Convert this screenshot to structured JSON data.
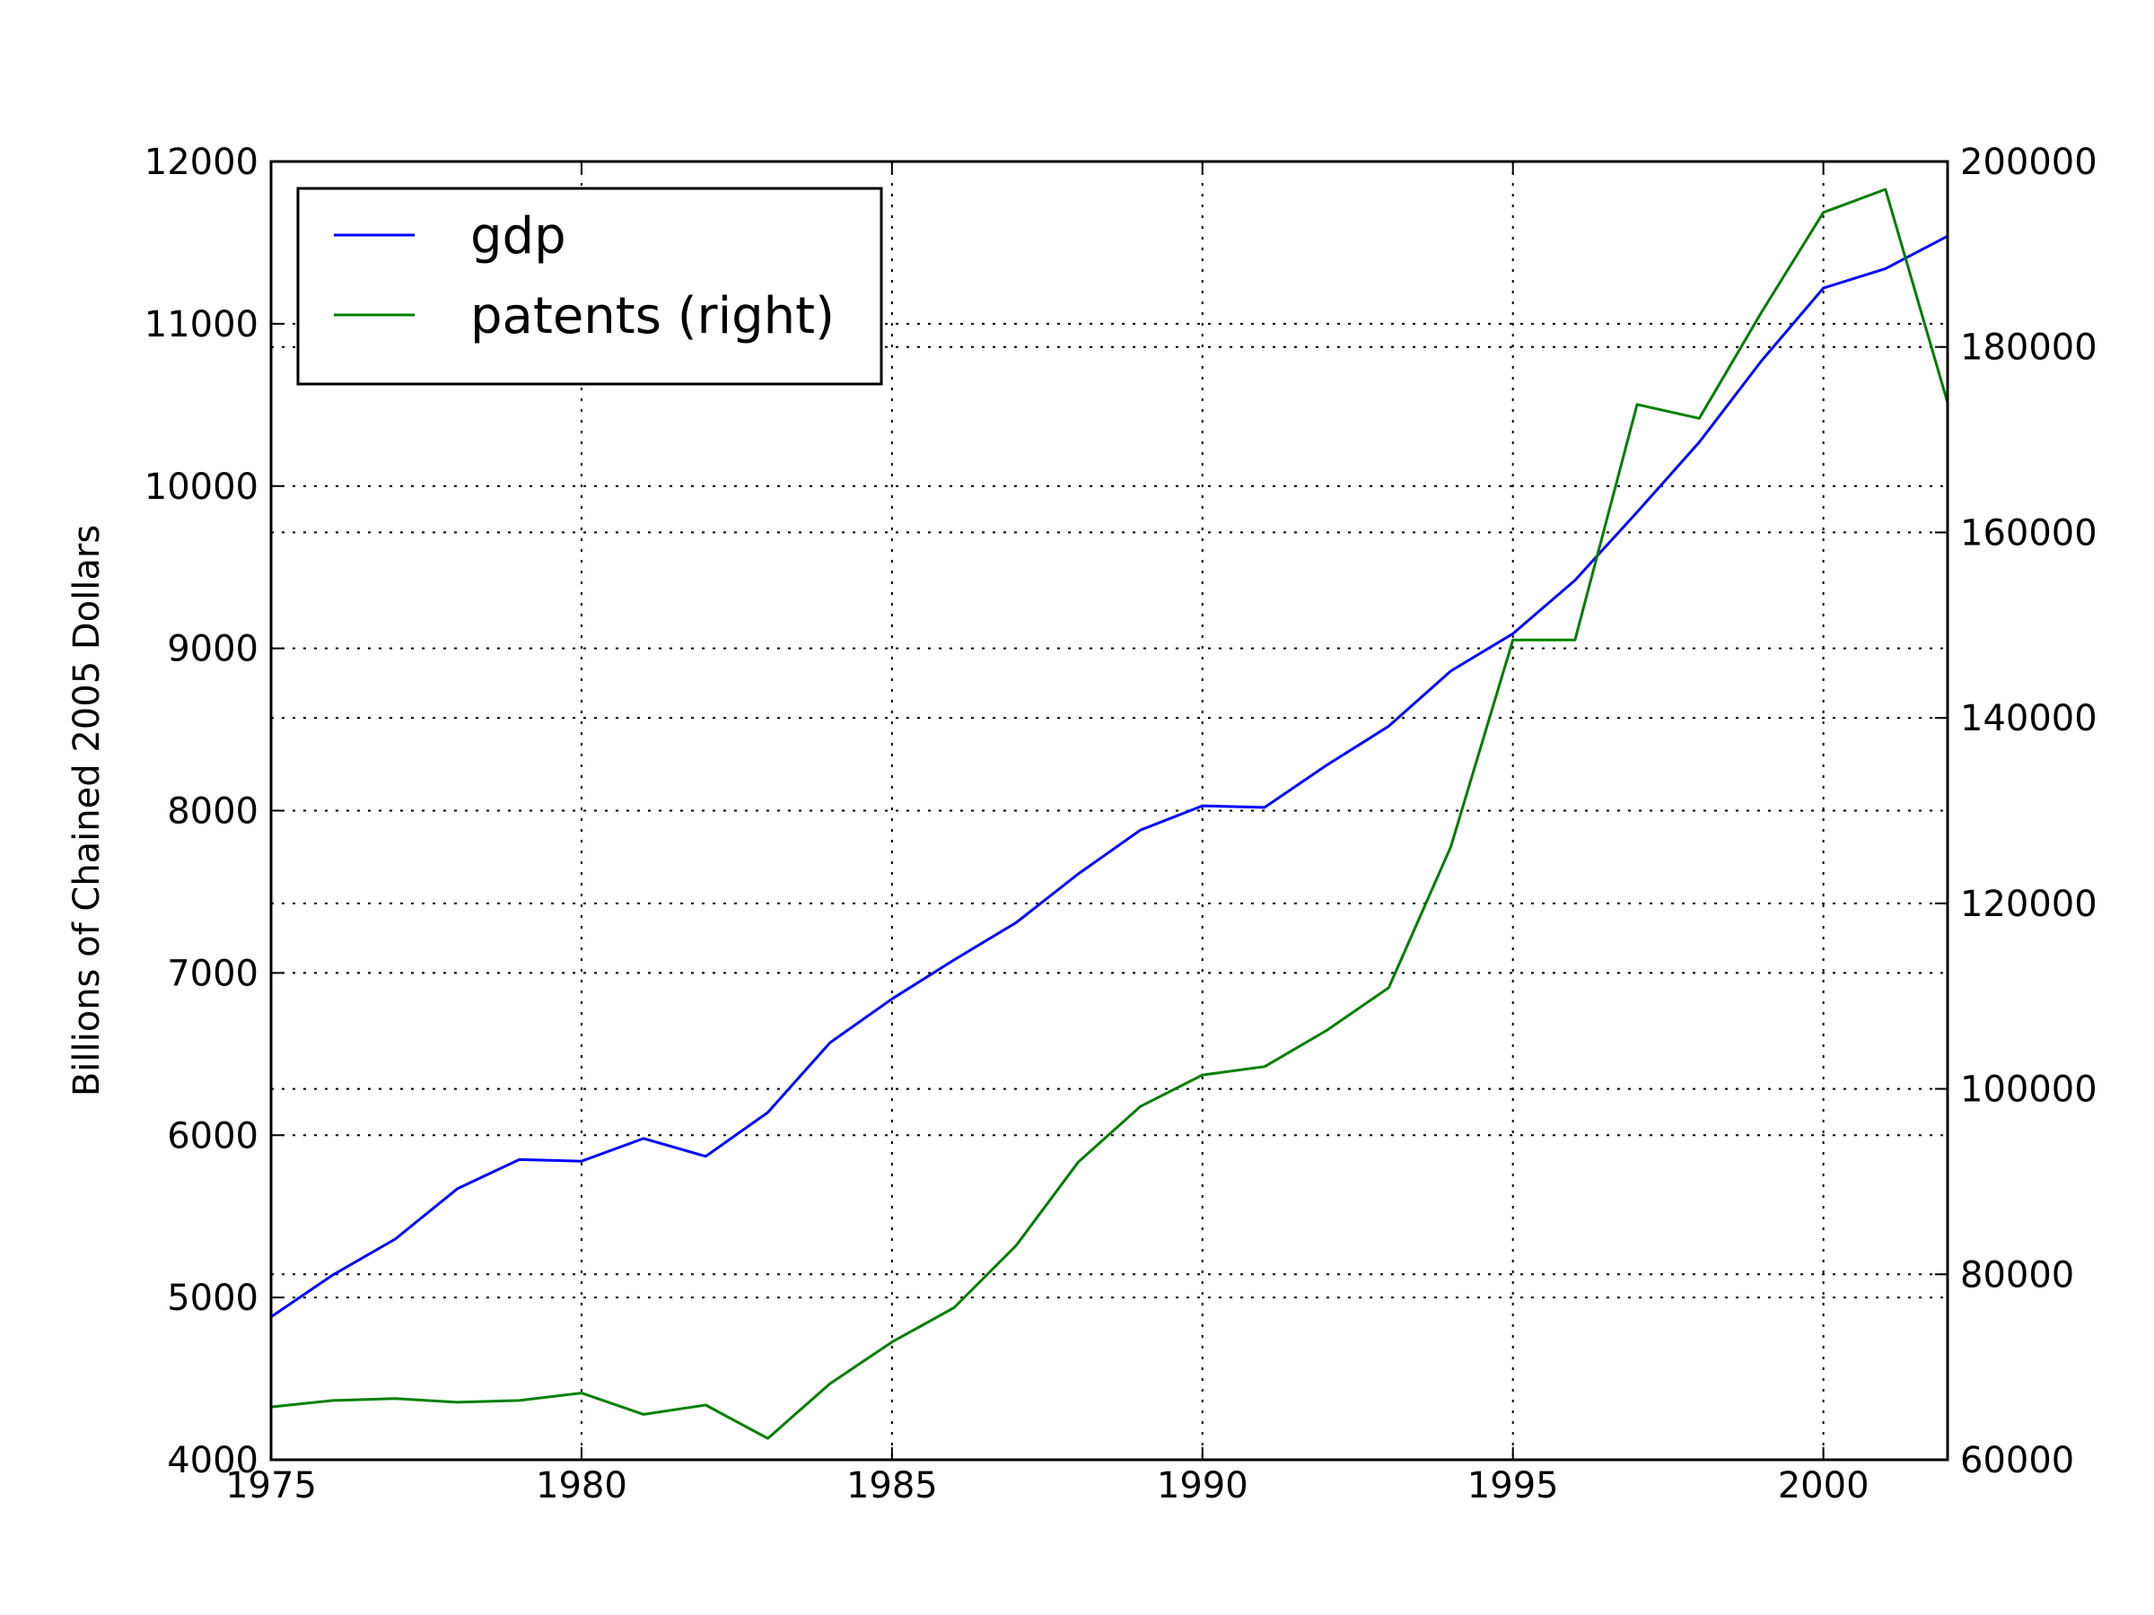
{
  "chart_data": {
    "type": "line",
    "title": "",
    "xlabel": "",
    "ylabel": "Billions of Chained 2005 Dollars",
    "y2label": "",
    "xlim": [
      1975,
      2002
    ],
    "ylim": [
      4000,
      12000
    ],
    "y2lim": [
      60000,
      200000
    ],
    "xticks": [
      1975,
      1980,
      1985,
      1990,
      1995,
      2000
    ],
    "yticks": [
      4000,
      5000,
      6000,
      7000,
      8000,
      9000,
      10000,
      11000,
      12000
    ],
    "y2ticks": [
      60000,
      80000,
      100000,
      120000,
      140000,
      160000,
      180000,
      200000
    ],
    "grid": true,
    "legend_position": "top-left",
    "x": [
      1975,
      1976,
      1977,
      1978,
      1979,
      1980,
      1981,
      1982,
      1983,
      1984,
      1985,
      1986,
      1987,
      1988,
      1989,
      1990,
      1991,
      1992,
      1993,
      1994,
      1995,
      1996,
      1997,
      1998,
      1999,
      2000,
      2001,
      2002
    ],
    "series": [
      {
        "name": "gdp",
        "axis": "left",
        "color": "#0000ff",
        "values": [
          4880,
          5140,
          5360,
          5670,
          5850,
          5840,
          5980,
          5870,
          6140,
          6570,
          6840,
          7080,
          7310,
          7610,
          7880,
          8030,
          8020,
          8280,
          8520,
          8860,
          9090,
          9420,
          9840,
          10270,
          10770,
          11220,
          11340,
          11540
        ]
      },
      {
        "name": "patents (right)",
        "axis": "right",
        "color": "#008000",
        "values": [
          65700,
          66400,
          66600,
          66200,
          66400,
          67200,
          64900,
          65900,
          62300,
          68200,
          72700,
          76400,
          83100,
          92100,
          98100,
          101500,
          102400,
          106300,
          110900,
          126100,
          148400,
          148400,
          173800,
          172300,
          183700,
          194500,
          197000,
          174000
        ]
      }
    ]
  }
}
